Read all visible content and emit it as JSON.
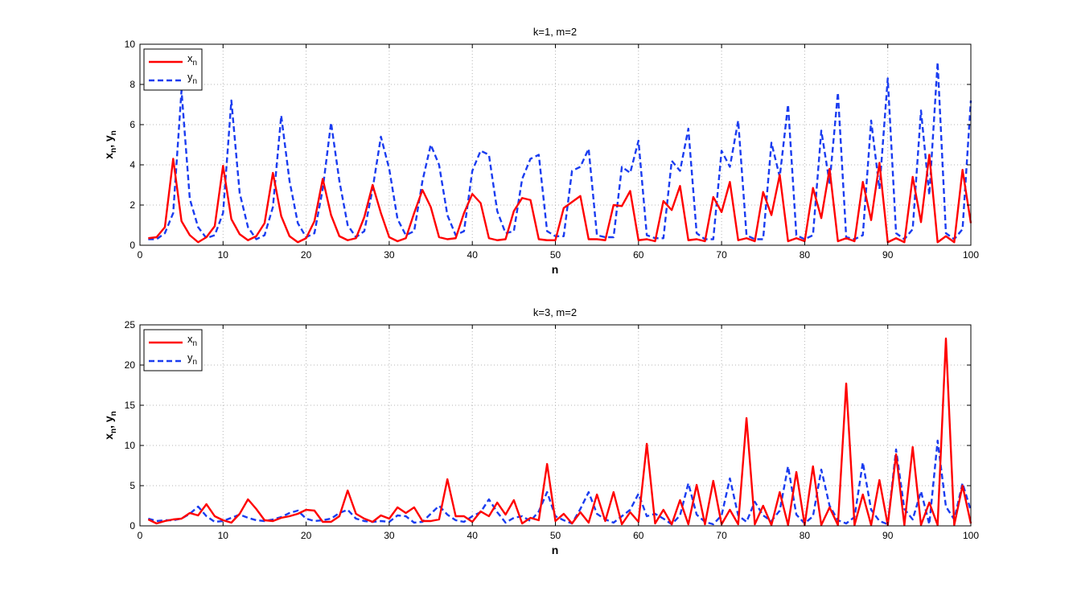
{
  "figure": {
    "background": "#ffffff"
  },
  "chart_data": [
    {
      "type": "line",
      "title": "k=1, m=2",
      "xlabel": "n",
      "ylabel": "x_n, y_n",
      "xlim": [
        0,
        100
      ],
      "ylim": [
        0,
        10
      ],
      "xticks": [
        0,
        10,
        20,
        30,
        40,
        50,
        60,
        70,
        80,
        90,
        100
      ],
      "yticks": [
        0,
        2,
        4,
        6,
        8,
        10
      ],
      "grid": true,
      "legend_position": "top-left",
      "x": [
        1,
        2,
        3,
        4,
        5,
        6,
        7,
        8,
        9,
        10,
        11,
        12,
        13,
        14,
        15,
        16,
        17,
        18,
        19,
        20,
        21,
        22,
        23,
        24,
        25,
        26,
        27,
        28,
        29,
        30,
        31,
        32,
        33,
        34,
        35,
        36,
        37,
        38,
        39,
        40,
        41,
        42,
        43,
        44,
        45,
        46,
        47,
        48,
        49,
        50,
        51,
        52,
        53,
        54,
        55,
        56,
        57,
        58,
        59,
        60,
        61,
        62,
        63,
        64,
        65,
        66,
        67,
        68,
        69,
        70,
        71,
        72,
        73,
        74,
        75,
        76,
        77,
        78,
        79,
        80,
        81,
        82,
        83,
        84,
        85,
        86,
        87,
        88,
        89,
        90,
        91,
        92,
        93,
        94,
        95,
        96,
        97,
        98,
        99,
        100
      ],
      "series": [
        {
          "name": "x",
          "subscript": "n",
          "color": "#ff0000",
          "style": "solid",
          "values": [
            0.35,
            0.4,
            0.9,
            4.3,
            1.2,
            0.5,
            0.15,
            0.4,
            0.95,
            3.95,
            1.3,
            0.55,
            0.25,
            0.45,
            1.1,
            3.6,
            1.45,
            0.45,
            0.15,
            0.35,
            1.2,
            3.3,
            1.5,
            0.45,
            0.25,
            0.35,
            1.4,
            3.0,
            1.6,
            0.4,
            0.2,
            0.35,
            1.6,
            2.75,
            1.9,
            0.4,
            0.3,
            0.35,
            1.6,
            2.55,
            2.1,
            0.35,
            0.25,
            0.3,
            1.7,
            2.35,
            2.25,
            0.3,
            0.25,
            0.25,
            1.85,
            2.15,
            2.45,
            0.3,
            0.3,
            0.25,
            2.0,
            1.95,
            2.7,
            0.25,
            0.3,
            0.2,
            2.2,
            1.75,
            2.95,
            0.25,
            0.3,
            0.2,
            2.4,
            1.65,
            3.15,
            0.25,
            0.35,
            0.2,
            2.65,
            1.5,
            3.5,
            0.2,
            0.35,
            0.2,
            2.85,
            1.35,
            3.8,
            0.2,
            0.35,
            0.2,
            3.15,
            1.25,
            4.1,
            0.15,
            0.35,
            0.15,
            3.4,
            1.15,
            4.5,
            0.15,
            0.45,
            0.15,
            3.75,
            1.1
          ]
        },
        {
          "name": "y",
          "subscript": "n",
          "color": "#1a3cf0",
          "style": "dashed",
          "values": [
            0.3,
            0.3,
            0.6,
            1.6,
            7.7,
            2.3,
            0.9,
            0.35,
            0.5,
            1.6,
            7.2,
            2.6,
            0.9,
            0.3,
            0.5,
            1.9,
            6.45,
            3.2,
            1.1,
            0.4,
            0.6,
            2.8,
            6.1,
            3.2,
            1.0,
            0.4,
            0.7,
            2.8,
            5.4,
            3.8,
            1.3,
            0.5,
            0.7,
            3.2,
            5.0,
            4.0,
            1.5,
            0.5,
            0.7,
            3.7,
            4.7,
            4.5,
            1.7,
            0.6,
            0.7,
            3.3,
            4.3,
            4.5,
            0.7,
            0.45,
            0.45,
            3.7,
            3.9,
            4.8,
            0.5,
            0.4,
            0.4,
            3.9,
            3.6,
            5.2,
            0.5,
            0.35,
            0.35,
            4.2,
            3.7,
            5.8,
            0.6,
            0.3,
            0.3,
            4.7,
            3.9,
            6.2,
            0.5,
            0.3,
            0.3,
            5.1,
            3.4,
            7.0,
            0.5,
            0.3,
            0.5,
            5.7,
            3.1,
            7.6,
            0.4,
            0.3,
            0.5,
            6.2,
            2.8,
            8.3,
            0.6,
            0.3,
            0.8,
            6.7,
            2.5,
            9.1,
            0.6,
            0.3,
            0.8,
            7.2
          ]
        }
      ]
    },
    {
      "type": "line",
      "title": "k=3, m=2",
      "xlabel": "n",
      "ylabel": "x_n, y_n",
      "xlim": [
        0,
        100
      ],
      "ylim": [
        0,
        25
      ],
      "xticks": [
        0,
        10,
        20,
        30,
        40,
        50,
        60,
        70,
        80,
        90,
        100
      ],
      "yticks": [
        0,
        5,
        10,
        15,
        20,
        25
      ],
      "grid": true,
      "legend_position": "top-left",
      "x": [
        1,
        2,
        3,
        4,
        5,
        6,
        7,
        8,
        9,
        10,
        11,
        12,
        13,
        14,
        15,
        16,
        17,
        18,
        19,
        20,
        21,
        22,
        23,
        24,
        25,
        26,
        27,
        28,
        29,
        30,
        31,
        32,
        33,
        34,
        35,
        36,
        37,
        38,
        39,
        40,
        41,
        42,
        43,
        44,
        45,
        46,
        47,
        48,
        49,
        50,
        51,
        52,
        53,
        54,
        55,
        56,
        57,
        58,
        59,
        60,
        61,
        62,
        63,
        64,
        65,
        66,
        67,
        68,
        69,
        70,
        71,
        72,
        73,
        74,
        75,
        76,
        77,
        78,
        79,
        80,
        81,
        82,
        83,
        84,
        85,
        86,
        87,
        88,
        89,
        90,
        91,
        92,
        93,
        94,
        95,
        96,
        97,
        98,
        99,
        100
      ],
      "series": [
        {
          "name": "x",
          "subscript": "n",
          "color": "#ff0000",
          "style": "solid",
          "values": [
            0.8,
            0.3,
            0.6,
            0.8,
            0.9,
            1.6,
            1.3,
            2.7,
            1.2,
            0.7,
            0.4,
            1.5,
            3.3,
            2.1,
            0.7,
            0.6,
            1.0,
            1.2,
            1.5,
            2.0,
            1.9,
            0.5,
            0.5,
            1.2,
            4.4,
            1.5,
            0.9,
            0.5,
            1.3,
            0.9,
            2.3,
            1.6,
            2.3,
            0.6,
            0.6,
            0.8,
            5.8,
            1.2,
            1.2,
            0.5,
            1.8,
            1.2,
            2.9,
            1.4,
            3.2,
            0.3,
            1.0,
            0.7,
            7.7,
            0.6,
            1.5,
            0.3,
            1.7,
            0.4,
            3.9,
            0.6,
            4.2,
            0.2,
            1.7,
            0.5,
            10.2,
            0.3,
            2.0,
            0.2,
            3.2,
            0.2,
            5.1,
            0.2,
            5.6,
            0.2,
            2.0,
            0.2,
            13.4,
            0.2,
            2.5,
            0.1,
            4.2,
            0.1,
            6.7,
            0.1,
            7.4,
            0.1,
            2.3,
            0.1,
            17.7,
            0.1,
            3.9,
            0.1,
            5.7,
            0.1,
            8.9,
            0.1,
            9.8,
            0.1,
            2.9,
            0.1,
            23.3,
            0.1,
            5.0,
            0.3
          ]
        },
        {
          "name": "y",
          "subscript": "n",
          "color": "#1a3cf0",
          "style": "dashed",
          "values": [
            0.9,
            0.6,
            0.7,
            0.7,
            0.9,
            1.5,
            2.4,
            1.2,
            0.5,
            0.6,
            1.0,
            1.4,
            1.0,
            0.7,
            0.6,
            0.8,
            1.1,
            1.6,
            1.9,
            0.9,
            0.6,
            0.7,
            0.9,
            1.6,
            2.0,
            0.9,
            0.6,
            0.5,
            0.6,
            0.5,
            1.3,
            1.2,
            0.4,
            0.5,
            1.5,
            2.5,
            1.4,
            0.7,
            0.5,
            1.2,
            1.7,
            3.3,
            1.7,
            0.4,
            1.0,
            1.2,
            0.6,
            1.8,
            4.2,
            1.2,
            0.7,
            0.3,
            2.1,
            4.2,
            1.5,
            0.8,
            0.4,
            1.2,
            2.0,
            4.0,
            1.2,
            1.5,
            0.9,
            0.2,
            1.3,
            5.3,
            1.4,
            0.5,
            0.2,
            1.3,
            5.9,
            1.3,
            0.5,
            3.0,
            1.3,
            0.6,
            1.9,
            7.4,
            1.4,
            0.3,
            1.2,
            7.0,
            2.5,
            0.7,
            0.3,
            1.1,
            7.9,
            2.0,
            0.6,
            0.2,
            9.5,
            2.1,
            0.8,
            4.3,
            0.2,
            10.6,
            2.4,
            0.8,
            5.3,
            1.9
          ]
        }
      ]
    }
  ]
}
